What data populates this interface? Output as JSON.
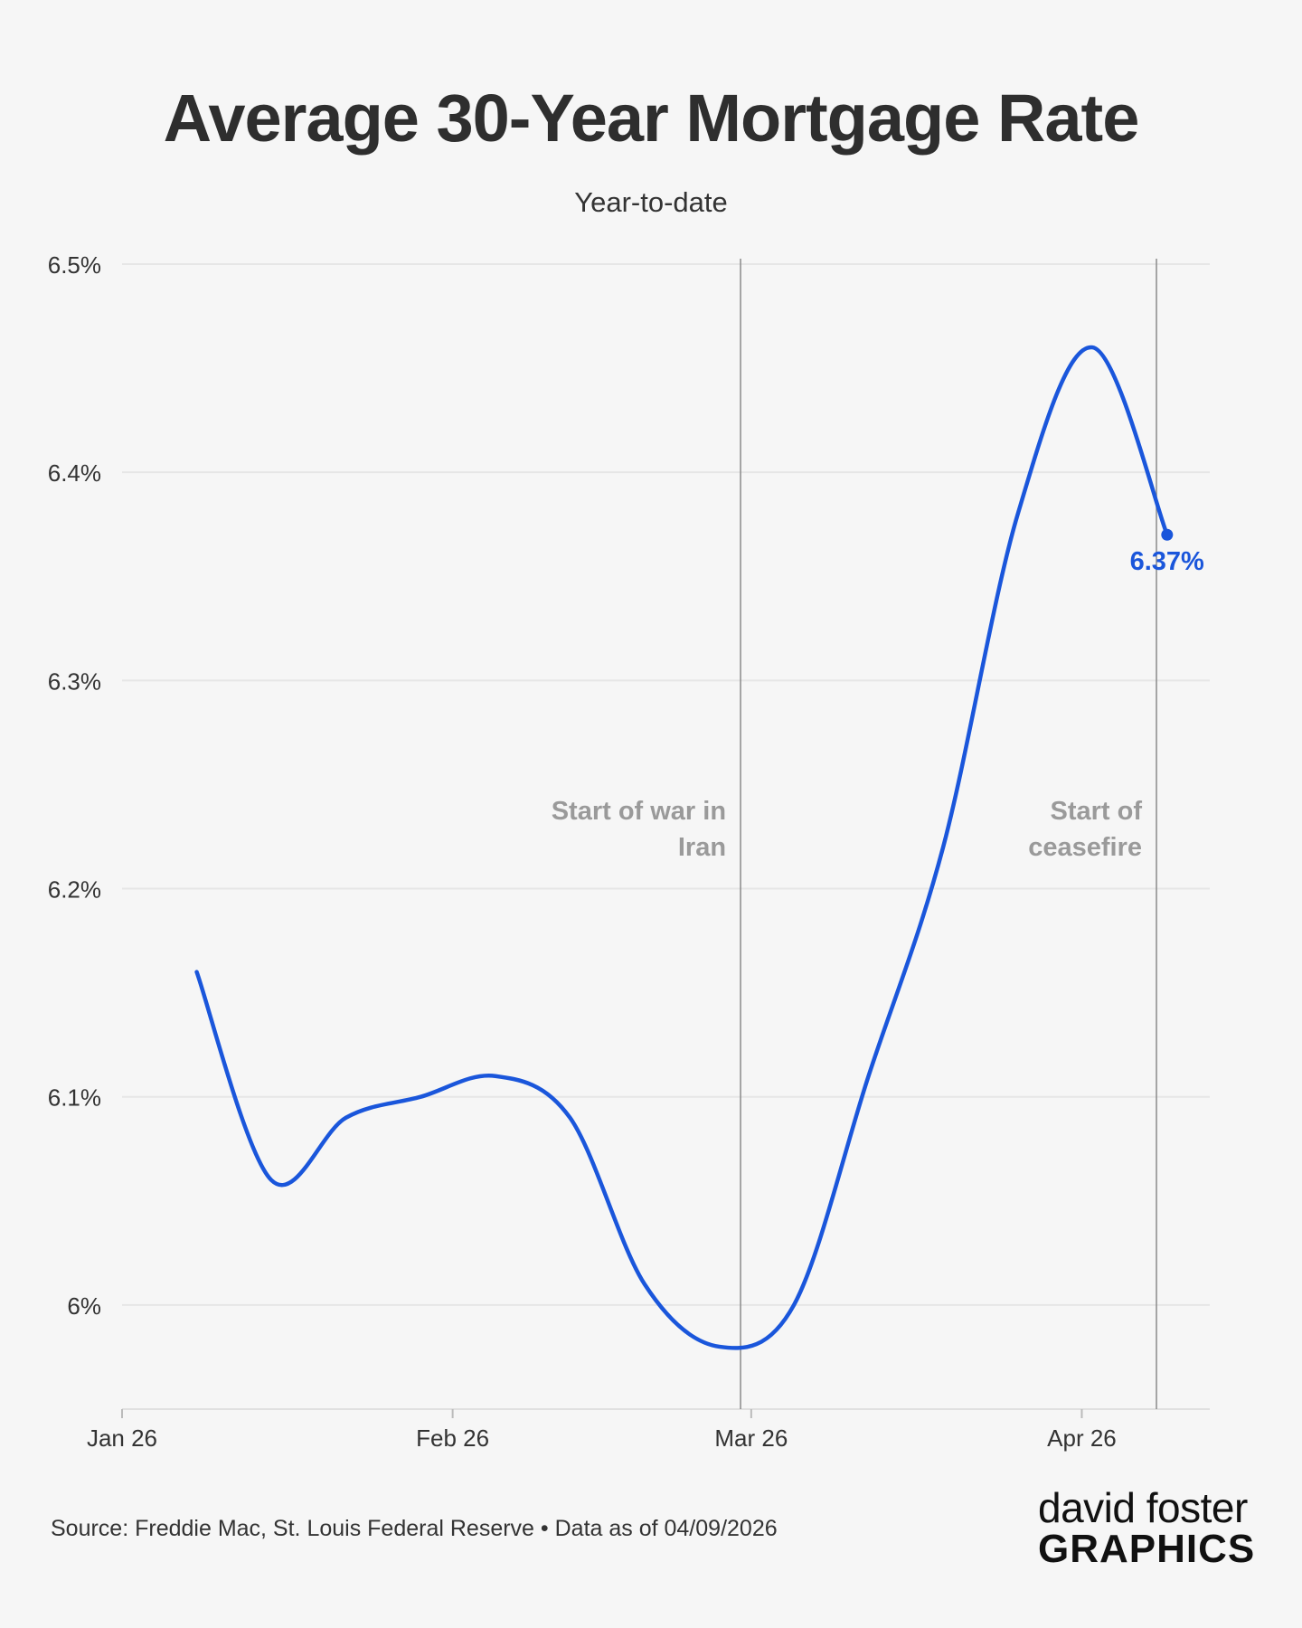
{
  "header": {
    "title": "Average 30-Year Mortgage Rate",
    "subtitle": "Year-to-date"
  },
  "chart_data": {
    "type": "line",
    "title": "Average 30-Year Mortgage Rate",
    "subtitle": "Year-to-date",
    "xlabel": "",
    "ylabel": "",
    "x_ticks": [
      "Jan 26",
      "Feb 26",
      "Mar 26",
      "Apr 26"
    ],
    "y_ticks": [
      "6%",
      "6.1%",
      "6.2%",
      "6.3%",
      "6.4%",
      "6.5%"
    ],
    "ylim": [
      5.95,
      6.5
    ],
    "xlim": [
      "2026-01-01",
      "2026-04-13"
    ],
    "grid": true,
    "series": [
      {
        "name": "",
        "color": "#1a56db",
        "points": [
          {
            "x": "2026-01-08",
            "y": 6.16
          },
          {
            "x": "2026-01-15",
            "y": 6.06
          },
          {
            "x": "2026-01-22",
            "y": 6.09
          },
          {
            "x": "2026-01-29",
            "y": 6.1
          },
          {
            "x": "2026-02-05",
            "y": 6.11
          },
          {
            "x": "2026-02-12",
            "y": 6.09
          },
          {
            "x": "2026-02-19",
            "y": 6.01
          },
          {
            "x": "2026-02-26",
            "y": 5.98
          },
          {
            "x": "2026-03-05",
            "y": 6.0
          },
          {
            "x": "2026-03-12",
            "y": 6.11
          },
          {
            "x": "2026-03-19",
            "y": 6.22
          },
          {
            "x": "2026-03-26",
            "y": 6.38
          },
          {
            "x": "2026-04-02",
            "y": 6.46
          },
          {
            "x": "2026-04-09",
            "y": 6.37
          }
        ]
      }
    ],
    "end_label": "6.37%",
    "annotations": [
      {
        "x": "2026-02-28",
        "text": [
          "Start of war in",
          "Iran"
        ]
      },
      {
        "x": "2026-04-08",
        "text": [
          "Start of",
          "ceasefire"
        ]
      }
    ]
  },
  "footer": {
    "source": "Source: Freddie Mac, St. Louis Federal Reserve • Data as of 04/09/2026"
  },
  "logo": {
    "line1": "david foster",
    "line2": "GRAPHICS"
  }
}
